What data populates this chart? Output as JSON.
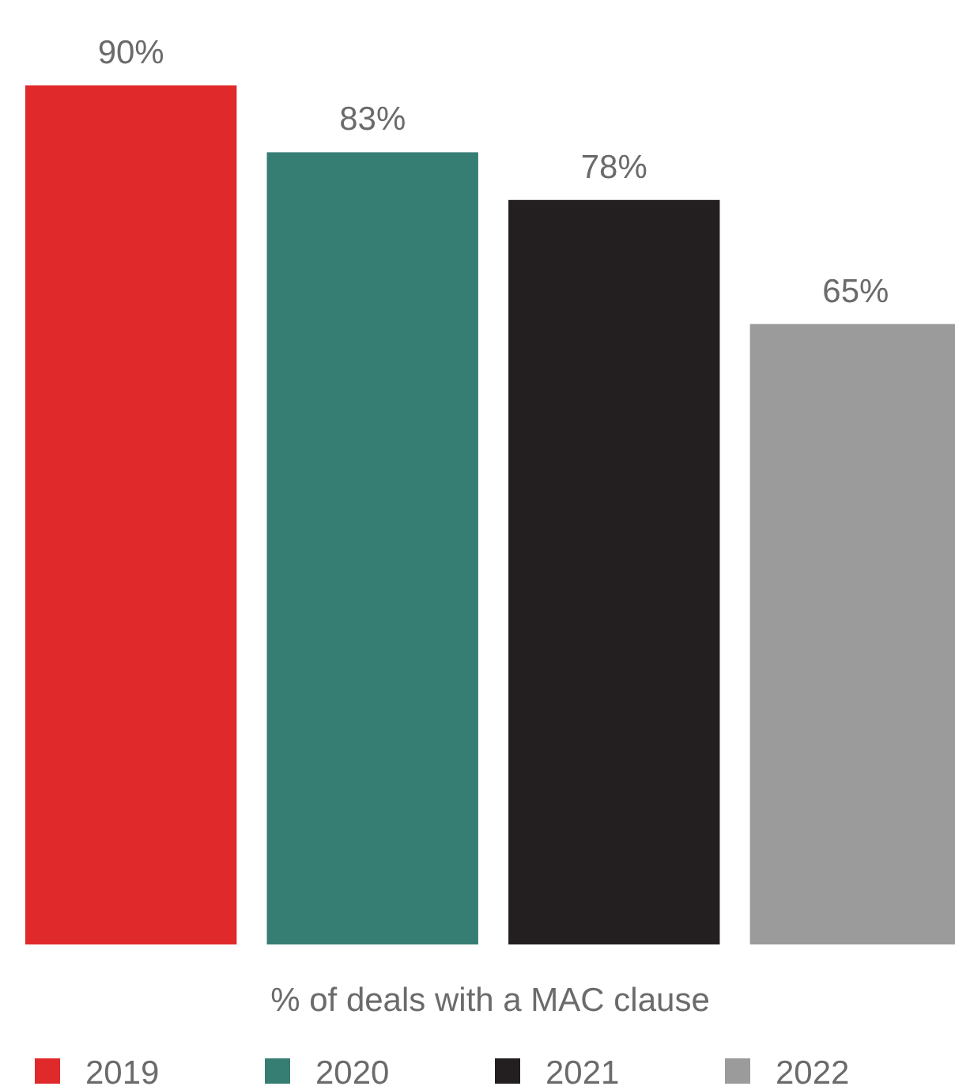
{
  "chart_data": {
    "type": "bar",
    "xlabel": "% of deals with a MAC clause",
    "categories": [
      null,
      null,
      null,
      null
    ],
    "stacked": true,
    "series": [
      {
        "name": "2019",
        "color": "#e0292a",
        "values": [
          90,
          null,
          null,
          null
        ],
        "value_labels": [
          "90%",
          null,
          null,
          null
        ]
      },
      {
        "name": "2020",
        "color": "#367d74",
        "values": [
          null,
          83,
          null,
          null
        ],
        "value_labels": [
          null,
          "83%",
          null,
          null
        ]
      },
      {
        "name": "2021",
        "color": "#231f20",
        "values": [
          null,
          null,
          78,
          null
        ],
        "value_labels": [
          null,
          null,
          "78%",
          null
        ]
      },
      {
        "name": "2022",
        "color": "#9b9b9b",
        "values": [
          null,
          null,
          null,
          65
        ],
        "value_labels": [
          null,
          null,
          null,
          "65%"
        ]
      }
    ],
    "legend": "bottom",
    "grid": false
  }
}
